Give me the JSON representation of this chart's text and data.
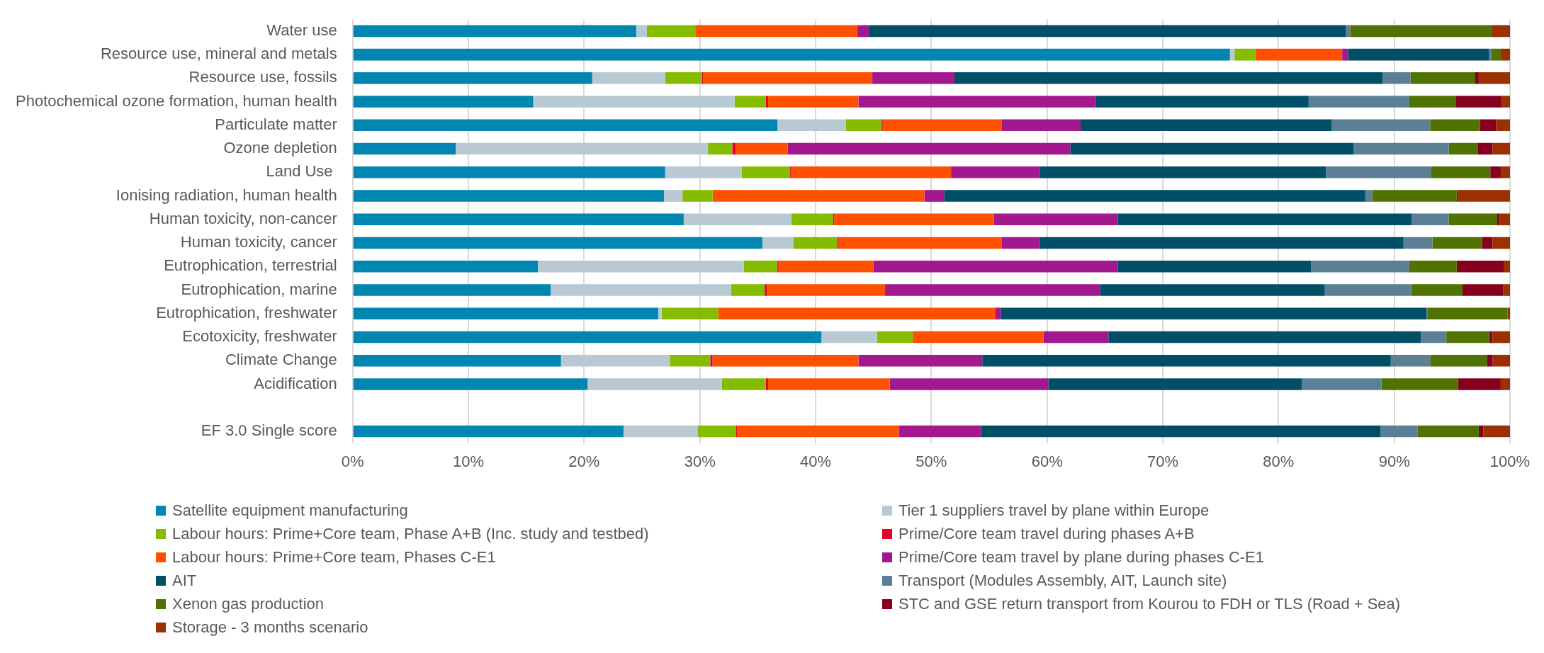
{
  "chart_data": {
    "type": "bar",
    "orientation": "horizontal",
    "stacked": true,
    "grid": "x",
    "legend": "bottom",
    "categories": [
      "Water use",
      "Resource use, mineral and metals",
      "Resource use, fossils",
      "Photochemical ozone formation, human health",
      "Particulate matter",
      "Ozone depletion",
      "Land Use ",
      "Ionising radiation, human health",
      "Human toxicity, non-cancer",
      "Human toxicity, cancer",
      "Eutrophication, terrestrial",
      "Eutrophication, marine",
      "Eutrophication, freshwater",
      "Ecotoxicity, freshwater",
      "Climate Change",
      "Acidification",
      null,
      "EF 3.0 Single score"
    ],
    "xlim": [
      0,
      100
    ],
    "xticks": [
      {
        "value": 0,
        "label": "0%"
      },
      {
        "value": 10,
        "label": "10%"
      },
      {
        "value": 20,
        "label": "20%"
      },
      {
        "value": 30,
        "label": "30%"
      },
      {
        "value": 40,
        "label": "40%"
      },
      {
        "value": 50,
        "label": "50%"
      },
      {
        "value": 60,
        "label": "60%"
      },
      {
        "value": 70,
        "label": "70%"
      },
      {
        "value": 80,
        "label": "80%"
      },
      {
        "value": 90,
        "label": "90%"
      },
      {
        "value": 100,
        "label": "100%"
      }
    ],
    "series": [
      {
        "name": "Satellite equipment manufacturing",
        "color": "#0086b0",
        "values": [
          24.5,
          75.8,
          20.7,
          15.6,
          36.7,
          8.9,
          27.0,
          26.9,
          28.6,
          35.4,
          16.0,
          17.1,
          26.4,
          40.5,
          18.0,
          20.3,
          null,
          23.4
        ]
      },
      {
        "name": "Tier 1 suppliers travel by plane within Europe",
        "color": "#b8c9d3",
        "values": [
          0.9,
          0.4,
          6.3,
          17.4,
          5.9,
          21.8,
          6.6,
          1.6,
          9.3,
          2.7,
          17.8,
          15.6,
          0.3,
          4.8,
          9.4,
          11.6,
          null,
          6.4
        ]
      },
      {
        "name": "Labour hours: Prime+Core team, Phase A+B (Inc. study and testbed)",
        "color": "#86bc00",
        "values": [
          4.2,
          1.8,
          3.2,
          2.7,
          3.1,
          2.1,
          4.2,
          2.6,
          3.6,
          3.8,
          2.9,
          2.9,
          4.9,
          3.1,
          3.5,
          3.8,
          null,
          3.3
        ]
      },
      {
        "name": "Prime/Core team travel during phases A+B",
        "color": "#e4002b",
        "values": [
          0,
          0,
          0.1,
          0.2,
          0.1,
          0.3,
          0.1,
          0,
          0.1,
          0.1,
          0.1,
          0.2,
          0,
          0,
          0.2,
          0.2,
          null,
          0.1
        ]
      },
      {
        "name": "Labour hours: Prime+Core team, Phases C-E1",
        "color": "#ff5000",
        "values": [
          14.0,
          7.5,
          14.6,
          7.8,
          10.3,
          4.5,
          13.8,
          18.3,
          13.8,
          14.1,
          8.2,
          10.2,
          23.9,
          11.3,
          12.6,
          10.5,
          null,
          14.0
        ]
      },
      {
        "name": "Prime/Core team travel by plane during phases C-E1",
        "color": "#a3188e",
        "values": [
          1.0,
          0.5,
          7.1,
          20.5,
          6.8,
          24.4,
          7.7,
          1.7,
          10.7,
          3.3,
          21.1,
          18.6,
          0.5,
          5.6,
          10.7,
          13.7,
          null,
          7.1
        ]
      },
      {
        "name": "AIT",
        "color": "#004f67",
        "values": [
          41.2,
          12.2,
          37.0,
          18.4,
          21.7,
          24.5,
          24.7,
          36.4,
          25.4,
          31.4,
          16.7,
          19.4,
          36.8,
          27.0,
          35.3,
          21.9,
          null,
          34.5
        ]
      },
      {
        "name": "Transport (Modules Assembly, AIT, Launch site)",
        "color": "#5b7f95",
        "values": [
          0.4,
          0.2,
          2.4,
          8.7,
          8.5,
          8.2,
          9.1,
          0.6,
          3.2,
          2.5,
          8.5,
          7.5,
          0.1,
          2.2,
          3.4,
          6.9,
          null,
          3.2
        ]
      },
      {
        "name": "Xenon gas production",
        "color": "#4f7200",
        "values": [
          12.2,
          0.8,
          5.6,
          4.0,
          4.3,
          2.5,
          5.1,
          7.3,
          4.2,
          4.3,
          4.1,
          4.4,
          6.9,
          3.7,
          4.9,
          6.6,
          null,
          5.3
        ]
      },
      {
        "name": "STC and GSE return transport from Kourou to FDH or TLS (Road + Sea)",
        "color": "#86001e",
        "values": [
          0,
          0,
          0.3,
          4.0,
          1.4,
          1.3,
          0.9,
          0.1,
          0.2,
          0.9,
          4.1,
          3.5,
          0,
          0.3,
          0.5,
          3.7,
          null,
          0.4
        ]
      },
      {
        "name": "Storage - 3 months scenario",
        "color": "#9b3000",
        "values": [
          1.6,
          0.8,
          2.7,
          0.7,
          1.2,
          1.5,
          0.8,
          4.5,
          0.9,
          1.5,
          0.5,
          0.6,
          0.2,
          1.5,
          1.5,
          0.8,
          null,
          2.3
        ]
      }
    ]
  }
}
